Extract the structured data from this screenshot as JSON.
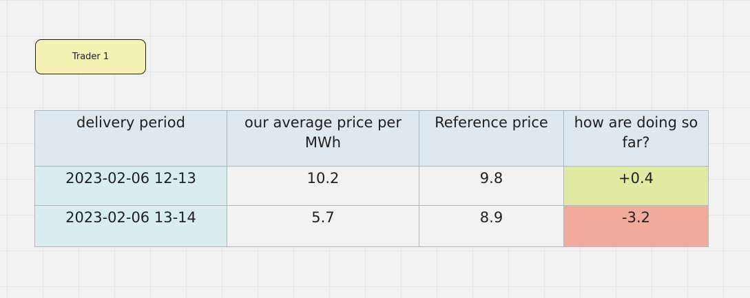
{
  "board": {
    "sticky_note": {
      "label": "Trader 1",
      "color": "#f5f3b4"
    }
  },
  "table": {
    "headers": [
      "delivery period",
      "our average price per MWh",
      "Reference price",
      "how are doing so far?"
    ],
    "rows": [
      {
        "delivery_period": "2023-02-06 12-13",
        "our_average_price": "10.2",
        "reference_price": "9.8",
        "performance": "+0.4",
        "performance_color": "#e1eaa2"
      },
      {
        "delivery_period": "2023-02-06 13-14",
        "our_average_price": "5.7",
        "reference_price": "8.9",
        "performance": "-3.2",
        "performance_color": "#f2aa9d"
      }
    ],
    "colors": {
      "header": "#dee8f1",
      "period_column": "#d9ecee"
    }
  }
}
